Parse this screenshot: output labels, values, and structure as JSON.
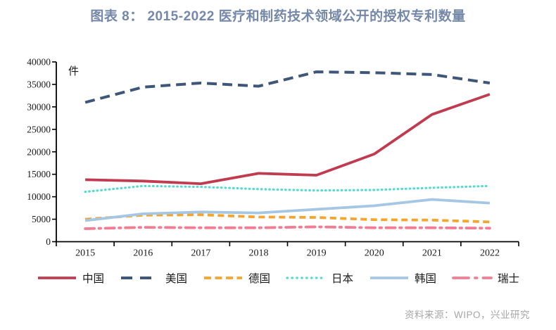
{
  "title": "图表 8： 2015-2022 医疗和制药技术领域公开的授权专利数量",
  "unit_label": "件",
  "source": "资料来源：WIPO，兴业研究",
  "colors": {
    "title": "#7588A9",
    "axis": "#000000",
    "source_text": "#A6A6A6"
  },
  "chart_data": {
    "type": "line",
    "x": [
      "2015",
      "2016",
      "2017",
      "2018",
      "2019",
      "2020",
      "2021",
      "2022"
    ],
    "series": [
      {
        "name": "中国",
        "color": "#C13B50",
        "style": "solid",
        "values": [
          13800,
          13500,
          12900,
          15200,
          14800,
          19500,
          28300,
          32800
        ]
      },
      {
        "name": "美国",
        "color": "#3E5677",
        "style": "long-dash",
        "values": [
          31000,
          34400,
          35300,
          34600,
          37800,
          37600,
          37200,
          35300
        ]
      },
      {
        "name": "德国",
        "color": "#F5A42C",
        "style": "dash",
        "values": [
          5000,
          5900,
          6000,
          5500,
          5400,
          4900,
          4800,
          4400
        ]
      },
      {
        "name": "日本",
        "color": "#4FDBCF",
        "style": "dot",
        "values": [
          11100,
          12400,
          12200,
          11700,
          11400,
          11500,
          12000,
          12400
        ]
      },
      {
        "name": "韩国",
        "color": "#A5C7E4",
        "style": "solid",
        "values": [
          4700,
          6200,
          6600,
          6400,
          7200,
          8000,
          9400,
          8600
        ]
      },
      {
        "name": "瑞士",
        "color": "#F27D93",
        "style": "dash-dot",
        "values": [
          2900,
          3200,
          3100,
          3100,
          3300,
          3100,
          3100,
          3000
        ]
      }
    ],
    "ylim": [
      0,
      40000
    ],
    "yticks": [
      0,
      5000,
      10000,
      15000,
      20000,
      25000,
      30000,
      35000,
      40000
    ],
    "grid": false,
    "legend_position": "bottom"
  }
}
